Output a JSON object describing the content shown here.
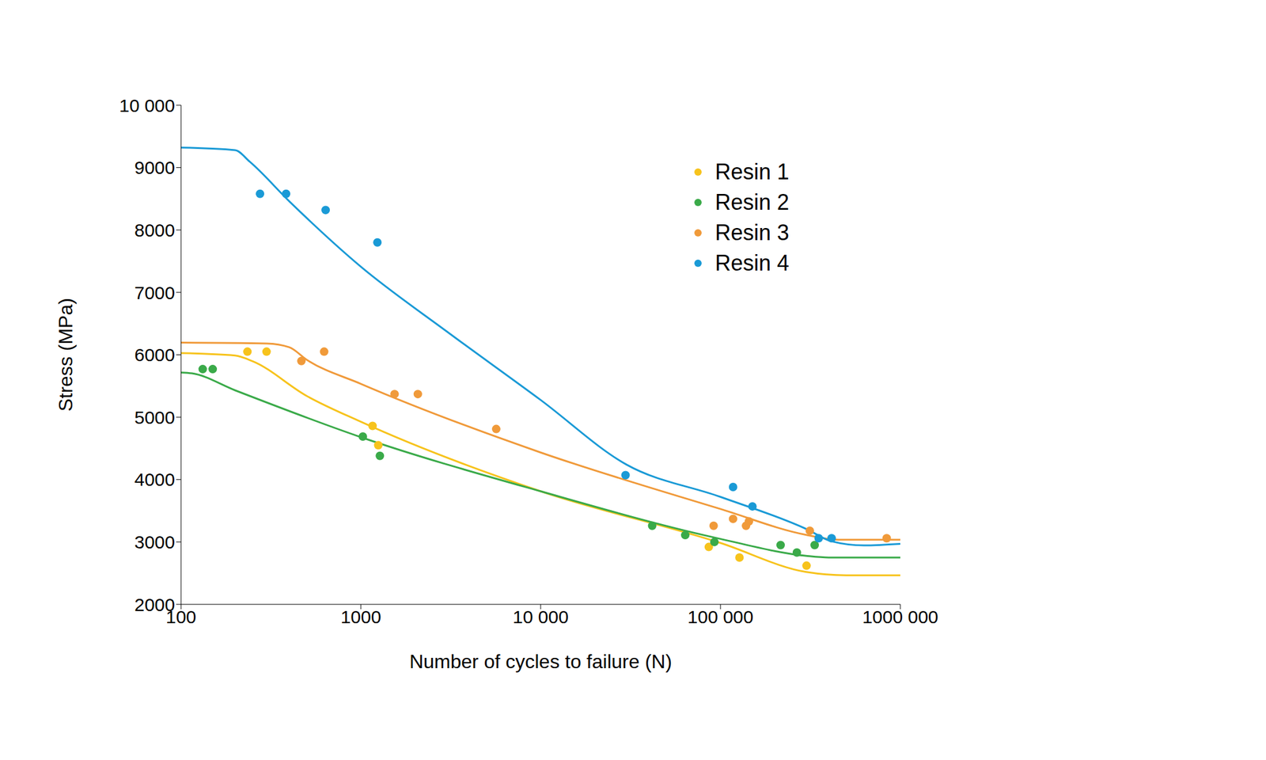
{
  "chart_data": {
    "type": "scatter",
    "x_label": "Number of cycles to failure (N)",
    "y_label": "Stress (MPa)",
    "log": "x",
    "grid": false,
    "legend": "upper right",
    "xlim": [
      100,
      1000000
    ],
    "xticks": [
      100,
      1000,
      {
        "value": 10000,
        "label": "10 000"
      },
      {
        "value": 100000,
        "label": "100 000"
      },
      {
        "value": 1000000,
        "label": "1000 000"
      }
    ],
    "ylim": [
      2000,
      10000
    ],
    "yticks": [
      2000,
      3000,
      4000,
      5000,
      6000,
      7000,
      8000,
      9000,
      {
        "value": 10000,
        "label": "10 000"
      }
    ],
    "series": [
      {
        "name": "Resin 1",
        "color": "#f7c31c",
        "marker": "circle",
        "x": [
          234,
          299,
          1162,
          1250,
          86100,
          127500,
          301000
        ],
        "values": [
          6050,
          6050,
          4860,
          4550,
          2920,
          2750,
          2620
        ],
        "fit": {
          "x": [
            100,
            200,
            250,
            500,
            1000,
            10000,
            100000,
            300000,
            500000,
            1000000
          ],
          "values": [
            6026,
            5987,
            5896,
            5340,
            4926,
            3812,
            2984,
            2518,
            2466,
            2466
          ]
        }
      },
      {
        "name": "Resin 2",
        "color": "#3aaa49",
        "marker": "circle",
        "x": [
          132,
          150,
          1026,
          1276,
          41700,
          63700,
          92500,
          216000,
          266000,
          334000
        ],
        "values": [
          5770,
          5770,
          4690,
          4380,
          3260,
          3110,
          3000,
          2950,
          2830,
          2950
        ],
        "fit": {
          "x": [
            100,
            115,
            200,
            1000,
            10000,
            100000,
            300000,
            400000,
            1000000
          ],
          "values": [
            5715,
            5702,
            5430,
            4680,
            3812,
            3049,
            2777,
            2751,
            2751
          ]
        }
      },
      {
        "name": "Resin 3",
        "color": "#f09a3a",
        "marker": "circle",
        "x": [
          467,
          625,
          1540,
          2075,
          5660,
          91600,
          117500,
          138700,
          144000,
          314000,
          840000
        ],
        "values": [
          5900,
          6050,
          5370,
          5370,
          4810,
          3260,
          3370,
          3260,
          3330,
          3180,
          3060
        ],
        "fit": {
          "x": [
            100,
            300,
            400,
            500,
            1000,
            10000,
            100000,
            300000,
            450000,
            1000000
          ],
          "values": [
            6194,
            6180,
            6120,
            5920,
            5534,
            4434,
            3528,
            3113,
            3036,
            3036
          ]
        }
      },
      {
        "name": "Resin 4",
        "color": "#1a9ad6",
        "marker": "circle",
        "x": [
          275,
          384,
          637,
          1236,
          29650,
          117500,
          150600,
          351600,
          415000
        ],
        "values": [
          8580,
          8580,
          8320,
          7800,
          4070,
          3880,
          3570,
          3060,
          3060
        ],
        "fit": {
          "x": [
            100,
            200,
            241,
            404,
            1000,
            3000,
            10000,
            30000,
            100000,
            304000,
            415000,
            628000,
            1000000
          ],
          "values": [
            9320,
            9280,
            9094,
            8447,
            7411,
            6375,
            5275,
            4240,
            3722,
            3200,
            3010,
            2945,
            2970
          ]
        }
      }
    ]
  }
}
